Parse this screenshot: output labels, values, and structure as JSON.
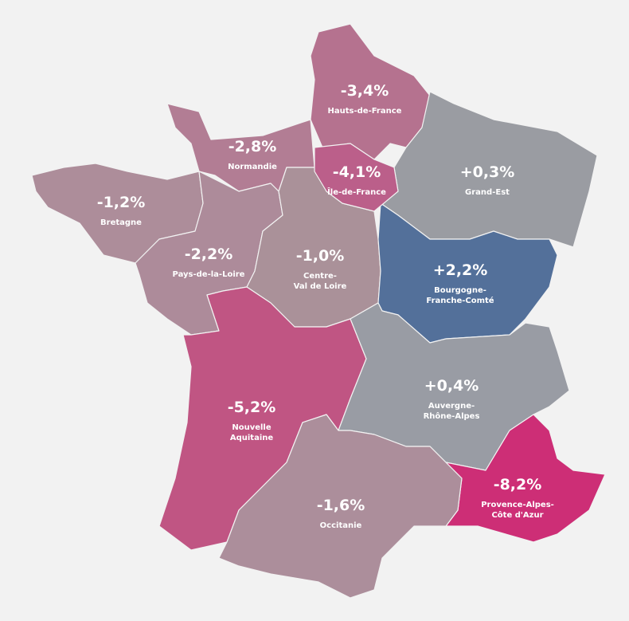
{
  "regions": [
    {
      "name": [
        "Hauts-de-France"
      ],
      "value": "-3,4%",
      "color": "#b5728f"
    },
    {
      "name": [
        "Normandie"
      ],
      "value": "-2,8%",
      "color": "#b27d94"
    },
    {
      "name": [
        "Bretagne"
      ],
      "value": "-1,2%",
      "color": "#ad8d9a"
    },
    {
      "name": [
        "Grand-Est"
      ],
      "value": "+0,3%",
      "color": "#9a9ca2"
    },
    {
      "name": [
        "Pays-de-la-Loire"
      ],
      "value": "-2,2%",
      "color": "#ad8b9a"
    },
    {
      "name": [
        "Centre-",
        "Val de Loire"
      ],
      "value": "-1,0%",
      "color": "#aa9199"
    },
    {
      "name": [
        "Bourgogne-",
        "Franche-Comté"
      ],
      "value": "+2,2%",
      "color": "#53709a"
    },
    {
      "name": [
        "Nouvelle",
        "Aquitaine"
      ],
      "value": "-5,2%",
      "color": "#c05583"
    },
    {
      "name": [
        "Auvergne-",
        "Rhône-Alpes"
      ],
      "value": "+0,4%",
      "color": "#999ca4"
    },
    {
      "name": [
        "Provence-Alpes-",
        "Côte d'Azur"
      ],
      "value": "-8,2%",
      "color": "#cd2e76"
    },
    {
      "name": [
        "Occitanie"
      ],
      "value": "-1,6%",
      "color": "#ac8e9b"
    },
    {
      "name": [
        "Île-de-France"
      ],
      "value": "-4,1%",
      "color": "#bb5f8a"
    }
  ]
}
